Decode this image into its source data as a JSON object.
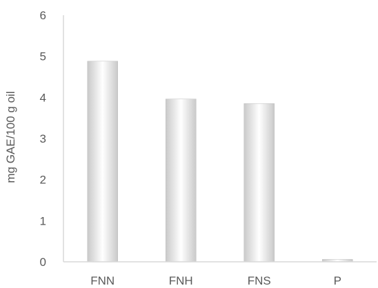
{
  "chart_data": {
    "type": "bar",
    "categories": [
      "FNN",
      "FNH",
      "FNS",
      "P"
    ],
    "values": [
      4.88,
      3.96,
      3.85,
      0.06
    ],
    "title": "",
    "xlabel": "",
    "ylabel": "mg GAE/100 g oil",
    "ylim": [
      0,
      6
    ],
    "yticks": [
      "0",
      "1",
      "2",
      "3",
      "4",
      "5",
      "6"
    ],
    "grid": false,
    "legend": "none"
  },
  "colors": {
    "bar_edge": "#c9c9c9",
    "bar_center": "#ffffff",
    "axis": "#d9d9d9",
    "text": "#595959"
  }
}
